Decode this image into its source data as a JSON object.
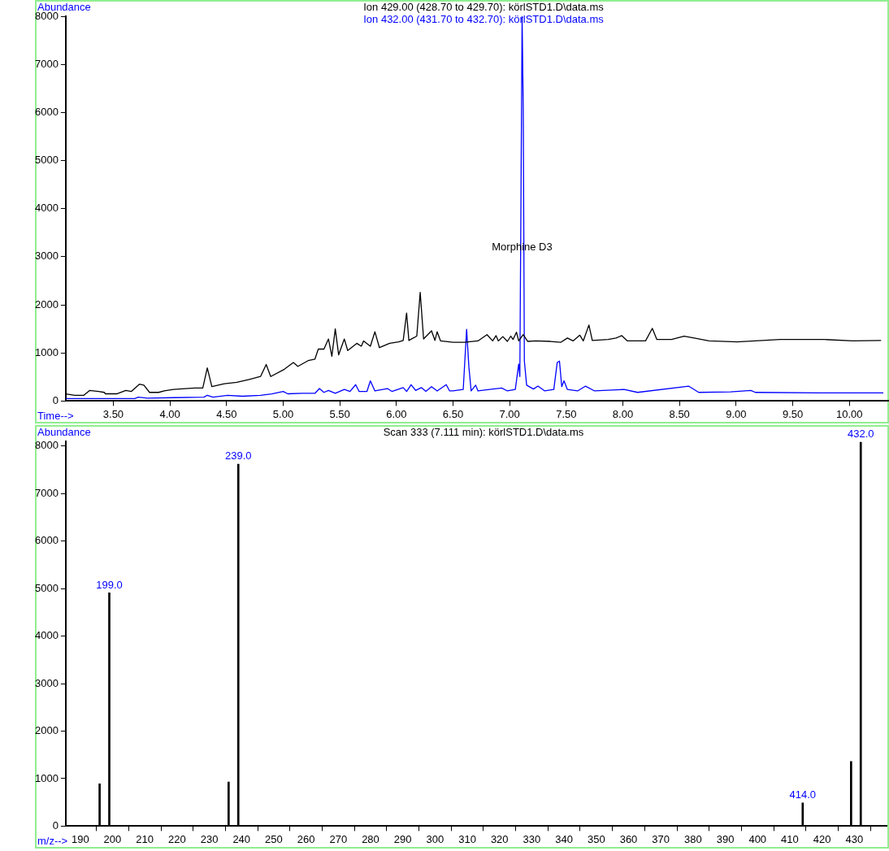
{
  "chart_data": [
    {
      "type": "line",
      "xlabel": "Time-->",
      "ylabel": "Abundance",
      "legend": "top",
      "xlim": [
        3.08,
        10.35
      ],
      "xticks": [
        {
          "value": 3.5,
          "label": "3.50"
        },
        {
          "value": 4,
          "label": "4.00"
        },
        {
          "value": 4.5,
          "label": "4.50"
        },
        {
          "value": 5,
          "label": "5.00"
        },
        {
          "value": 5.5,
          "label": "5.50"
        },
        {
          "value": 6,
          "label": "6.00"
        },
        {
          "value": 6.5,
          "label": "6.50"
        },
        {
          "value": 7,
          "label": "7.00"
        },
        {
          "value": 7.5,
          "label": "7.50"
        },
        {
          "value": 8,
          "label": "8.00"
        },
        {
          "value": 8.5,
          "label": "8.50"
        },
        {
          "value": 9,
          "label": "9.00"
        },
        {
          "value": 9.5,
          "label": "9.50"
        },
        {
          "value": 10,
          "label": "10.00"
        }
      ],
      "ylim": [
        0,
        8000
      ],
      "yticks": [
        0,
        1000,
        2000,
        3000,
        4000,
        5000,
        6000,
        7000,
        8000
      ],
      "annotations": [
        {
          "text": "Morphine D3",
          "x": 7.11,
          "y": 3200
        }
      ],
      "series": [
        {
          "name": "Ion 429.00 (428.70 to 429.70): körlSTD1.D\\data.ms",
          "color": "#000000",
          "x": [
            3.08,
            3.16,
            3.24,
            3.29,
            3.37,
            3.42,
            3.43,
            3.53,
            3.61,
            3.66,
            3.73,
            3.77,
            3.82,
            3.9,
            3.95,
            4.03,
            4.22,
            4.29,
            4.33,
            4.37,
            4.48,
            4.59,
            4.7,
            4.8,
            4.85,
            4.89,
            5.01,
            5.09,
            5.13,
            5.22,
            5.28,
            5.31,
            5.36,
            5.4,
            5.43,
            5.46,
            5.49,
            5.54,
            5.57,
            5.65,
            5.69,
            5.71,
            5.77,
            5.81,
            5.85,
            5.94,
            6.02,
            6.06,
            6.09,
            6.11,
            6.18,
            6.21,
            6.24,
            6.31,
            6.34,
            6.36,
            6.39,
            6.5,
            6.6,
            6.72,
            6.8,
            6.85,
            6.88,
            6.9,
            6.94,
            6.98,
            7.01,
            7.03,
            7.06,
            7.08,
            7.12,
            7.16,
            7.23,
            7.36,
            7.45,
            7.51,
            7.56,
            7.62,
            7.65,
            7.7,
            7.73,
            7.87,
            7.94,
            7.99,
            8.04,
            8.2,
            8.26,
            8.3,
            8.43,
            8.54,
            8.63,
            8.76,
            9.01,
            9.39,
            9.78,
            10.03,
            10.28
          ],
          "values": [
            150,
            120,
            120,
            220,
            200,
            180,
            150,
            150,
            220,
            200,
            350,
            330,
            180,
            180,
            210,
            240,
            270,
            270,
            690,
            300,
            360,
            390,
            450,
            510,
            760,
            510,
            660,
            800,
            720,
            840,
            870,
            1080,
            1080,
            1290,
            930,
            1500,
            960,
            1290,
            1050,
            1200,
            1140,
            1250,
            1140,
            1440,
            1110,
            1200,
            1230,
            1260,
            1830,
            1260,
            1350,
            2260,
            1290,
            1460,
            1260,
            1440,
            1250,
            1220,
            1220,
            1250,
            1380,
            1250,
            1360,
            1250,
            1340,
            1240,
            1350,
            1280,
            1430,
            1250,
            1380,
            1240,
            1250,
            1240,
            1220,
            1310,
            1250,
            1370,
            1250,
            1580,
            1260,
            1280,
            1310,
            1360,
            1250,
            1250,
            1510,
            1280,
            1280,
            1350,
            1310,
            1250,
            1230,
            1280,
            1280,
            1250,
            1260
          ]
        },
        {
          "name": "Ion 432.00 (431.70 to 432.70): körlSTD1.D\\data.ms",
          "color": "#0000ff",
          "x": [
            3.08,
            3.69,
            3.72,
            3.8,
            4.03,
            4.3,
            4.33,
            4.38,
            4.51,
            4.64,
            4.8,
            4.9,
            5.0,
            5.04,
            5.17,
            5.28,
            5.32,
            5.36,
            5.4,
            5.46,
            5.54,
            5.59,
            5.64,
            5.67,
            5.74,
            5.77,
            5.81,
            5.92,
            5.96,
            6.06,
            6.09,
            6.13,
            6.17,
            6.22,
            6.26,
            6.31,
            6.36,
            6.44,
            6.47,
            6.5,
            6.59,
            6.62,
            6.64,
            6.66,
            6.7,
            6.72,
            6.93,
            6.98,
            7.05,
            7.08,
            7.09,
            7.11,
            7.12,
            7.13,
            7.15,
            7.21,
            7.25,
            7.31,
            7.39,
            7.42,
            7.44,
            7.46,
            7.48,
            7.51,
            7.6,
            7.67,
            7.75,
            8.01,
            8.13,
            8.58,
            8.67,
            8.95,
            9.13,
            9.17,
            9.74,
            10.3
          ],
          "values": [
            50,
            50,
            80,
            60,
            70,
            80,
            120,
            80,
            120,
            100,
            120,
            150,
            200,
            150,
            160,
            160,
            260,
            180,
            220,
            160,
            240,
            200,
            340,
            200,
            200,
            420,
            210,
            260,
            200,
            280,
            200,
            340,
            220,
            280,
            200,
            300,
            210,
            340,
            210,
            210,
            240,
            1490,
            710,
            210,
            330,
            210,
            270,
            210,
            240,
            770,
            510,
            8000,
            6070,
            830,
            330,
            250,
            310,
            210,
            240,
            800,
            830,
            300,
            420,
            240,
            210,
            310,
            210,
            240,
            180,
            310,
            180,
            190,
            220,
            180,
            170,
            170
          ]
        }
      ]
    },
    {
      "type": "bar",
      "title": "Scan 333 (7.111 min): körlSTD1.D\\data.ms",
      "xlabel": "m/z-->",
      "ylabel": "Abundance",
      "x": [
        196,
        199,
        236,
        239,
        414,
        429,
        432
      ],
      "values": [
        890,
        4910,
        930,
        7620,
        490,
        1360,
        8080
      ],
      "color": "#000000",
      "annotations": [
        {
          "text": "199.0",
          "x": 199,
          "y": 4910
        },
        {
          "text": "239.0",
          "x": 239,
          "y": 7620
        },
        {
          "text": "414.0",
          "x": 414,
          "y": 490
        },
        {
          "text": "432.0",
          "x": 432,
          "y": 8080
        }
      ],
      "xlim": [
        185.5,
        440
      ],
      "xticks": [
        190,
        200,
        210,
        220,
        230,
        240,
        250,
        260,
        270,
        280,
        290,
        300,
        310,
        320,
        330,
        340,
        350,
        360,
        370,
        380,
        390,
        400,
        410,
        420,
        430,
        {
          "value": 440,
          "label": null
        }
      ],
      "ylim": [
        0,
        8100
      ],
      "yticks": [
        0,
        1000,
        2000,
        3000,
        4000,
        5000,
        6000,
        7000,
        8000
      ]
    }
  ]
}
